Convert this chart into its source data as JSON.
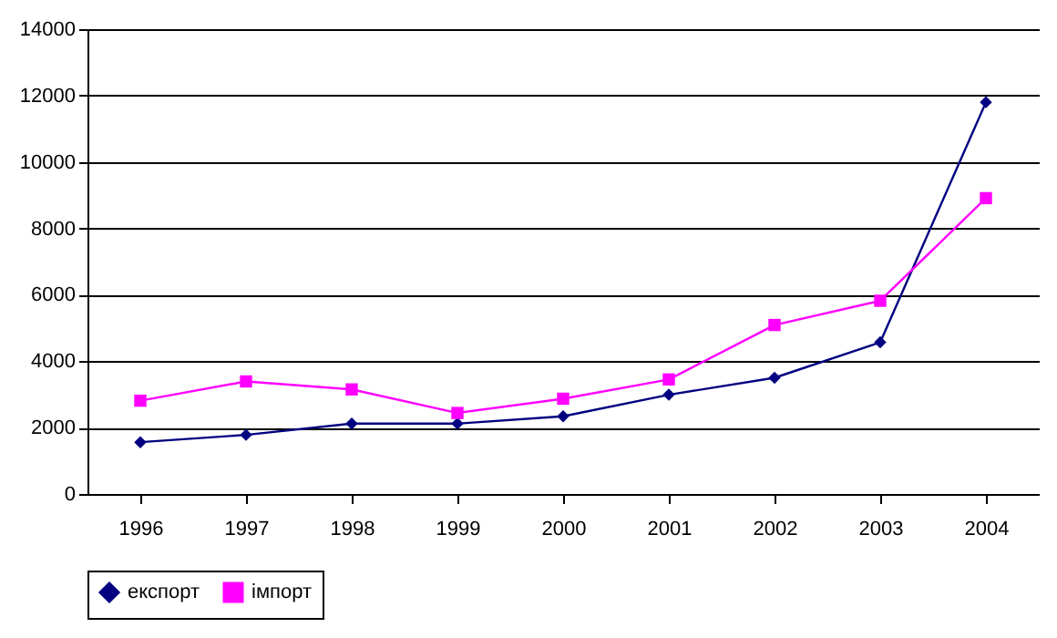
{
  "chart_data": {
    "type": "line",
    "categories": [
      "1996",
      "1997",
      "1998",
      "1999",
      "2000",
      "2001",
      "2002",
      "2003",
      "2004"
    ],
    "series": [
      {
        "name": "експорт",
        "color": "#000080",
        "marker": "diamond",
        "values": [
          1560,
          1780,
          2120,
          2120,
          2340,
          2990,
          3500,
          4570,
          11800
        ]
      },
      {
        "name": "імпорт",
        "color": "#ff00ff",
        "marker": "square",
        "values": [
          2810,
          3390,
          3150,
          2440,
          2870,
          3450,
          5090,
          5820,
          8910
        ]
      }
    ],
    "ylim": [
      0,
      14000
    ],
    "yticks": [
      0,
      2000,
      4000,
      6000,
      8000,
      10000,
      12000,
      14000
    ],
    "grid": "y",
    "legend": "bottom"
  }
}
